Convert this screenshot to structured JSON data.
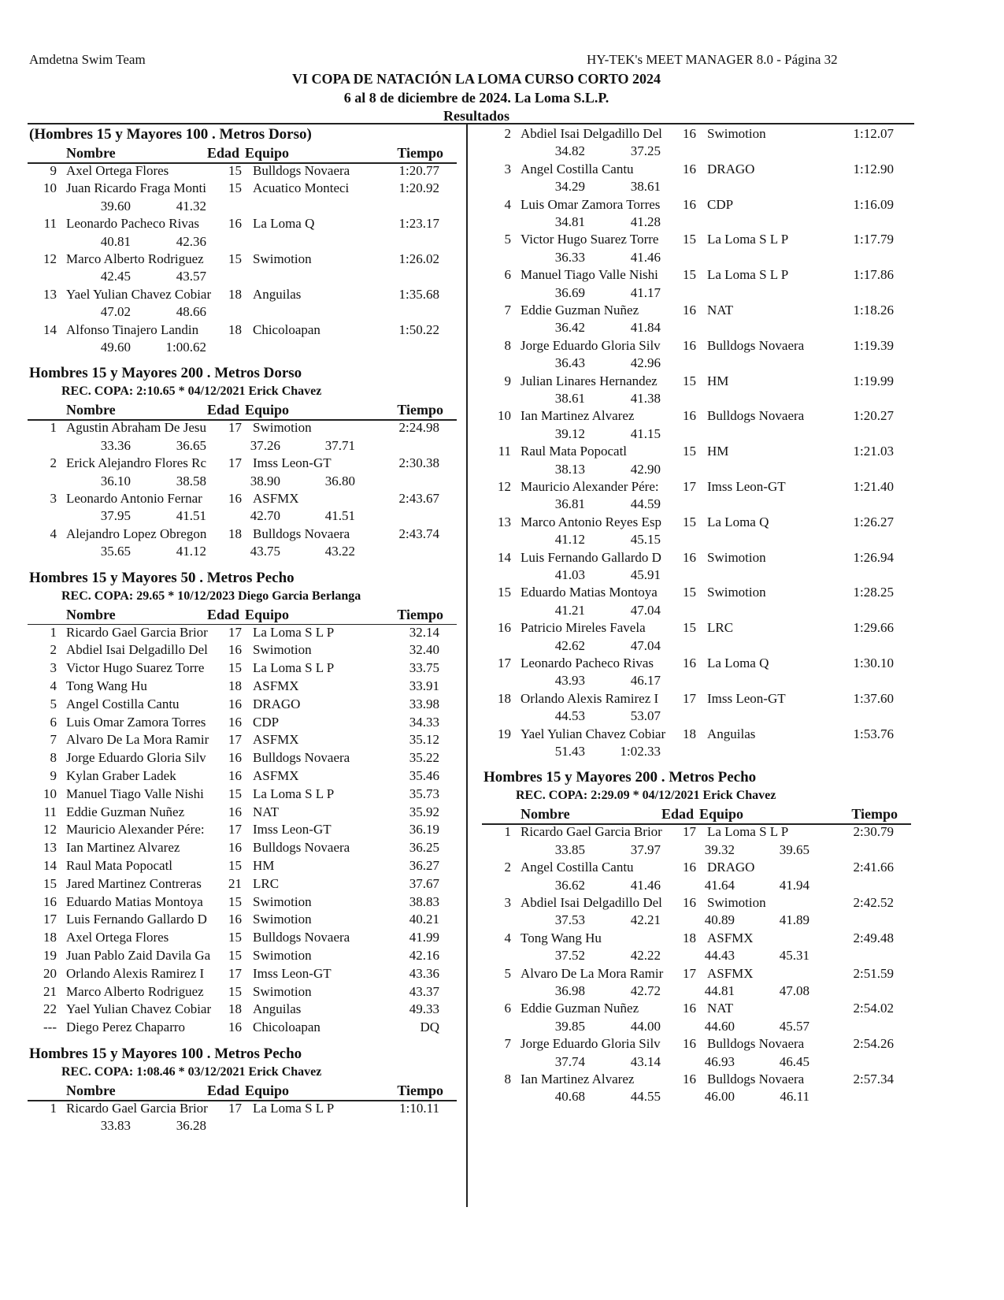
{
  "header": {
    "left": "Amdetna Swim Team",
    "right": "HY-TEK's MEET MANAGER 8.0 - Página 32",
    "title": "VI COPA DE NATACIÓN LA LOMA CURSO CORTO 2024",
    "subtitle": "6 al 8 de diciembre de 2024. La Loma S.L.P.",
    "section": "Resultados"
  },
  "columns": [
    "Nombre",
    "Edad",
    "Equipo",
    "Tiempo"
  ],
  "blocks": [
    {
      "title": "(Hombres 15 y Mayores 100 . Metros Dorso)",
      "rows": [
        [
          "9",
          "Axel Ortega Flores",
          15,
          "Bulldogs Novaera",
          "1:20.77",
          []
        ],
        [
          "10",
          "Juan Ricardo Fraga Monti",
          15,
          "Acuatico Monteci",
          "1:20.92",
          [
            "39.60",
            "41.32"
          ]
        ],
        [
          "11",
          "Leonardo Pacheco Rivas",
          16,
          "La Loma Q",
          "1:23.17",
          [
            "40.81",
            "42.36"
          ]
        ],
        [
          "12",
          "Marco Alberto Rodriguez",
          15,
          "Swimotion",
          "1:26.02",
          [
            "42.45",
            "43.57"
          ]
        ],
        [
          "13",
          "Yael Yulian Chavez Cobiar",
          18,
          "Anguilas",
          "1:35.68",
          [
            "47.02",
            "48.66"
          ]
        ],
        [
          "14",
          "Alfonso Tinajero Landin",
          18,
          "Chicoloapan",
          "1:50.22",
          [
            "49.60",
            "1:00.62"
          ]
        ]
      ]
    },
    {
      "title": "Hombres 15 y Mayores 200 . Metros Dorso",
      "record": "REC. COPA:  2:10.65  *  04/12/2021 Erick Chavez",
      "rows": [
        [
          "1",
          "Agustin Abraham De Jesu",
          17,
          "Swimotion",
          "2:24.98",
          [
            "33.36",
            "36.65",
            "37.26",
            "37.71"
          ]
        ],
        [
          "2",
          "Erick Alejandro Flores Rc",
          17,
          "Imss Leon-GT",
          "2:30.38",
          [
            "36.10",
            "38.58",
            "38.90",
            "36.80"
          ]
        ],
        [
          "3",
          "Leonardo Antonio Fernar",
          16,
          "ASFMX",
          "2:43.67",
          [
            "37.95",
            "41.51",
            "42.70",
            "41.51"
          ]
        ],
        [
          "4",
          "Alejandro Lopez Obregon",
          18,
          "Bulldogs Novaera",
          "2:43.74",
          [
            "35.65",
            "41.12",
            "43.75",
            "43.22"
          ]
        ]
      ]
    },
    {
      "title": "Hombres 15 y Mayores 50 . Metros Pecho",
      "record": "REC. COPA:     29.65  *  10/12/2023 Diego Garcia Berlanga",
      "rows": [
        [
          "1",
          "Ricardo Gael Garcia Brior",
          17,
          "La Loma S L P",
          "32.14",
          []
        ],
        [
          "2",
          "Abdiel Isai Delgadillo Del",
          16,
          "Swimotion",
          "32.40",
          []
        ],
        [
          "3",
          "Victor Hugo Suarez Torre",
          15,
          "La Loma S L P",
          "33.75",
          []
        ],
        [
          "4",
          "Tong Wang Hu",
          18,
          "ASFMX",
          "33.91",
          []
        ],
        [
          "5",
          "Angel Costilla Cantu",
          16,
          "DRAGO",
          "33.98",
          []
        ],
        [
          "6",
          "Luis Omar Zamora Torres",
          16,
          "CDP",
          "34.33",
          []
        ],
        [
          "7",
          "Alvaro De La Mora Ramir",
          17,
          "ASFMX",
          "35.12",
          []
        ],
        [
          "8",
          "Jorge Eduardo Gloria Silv",
          16,
          "Bulldogs Novaera",
          "35.22",
          []
        ],
        [
          "9",
          "Kylan Graber Ladek",
          16,
          "ASFMX",
          "35.46",
          []
        ],
        [
          "10",
          "Manuel Tiago Valle Nishi",
          15,
          "La Loma S L P",
          "35.73",
          []
        ],
        [
          "11",
          "Eddie Guzman Nuñez",
          16,
          "NAT",
          "35.92",
          []
        ],
        [
          "12",
          "Mauricio Alexander Pére:",
          17,
          "Imss Leon-GT",
          "36.19",
          []
        ],
        [
          "13",
          "Ian Martinez Alvarez",
          16,
          "Bulldogs Novaera",
          "36.25",
          []
        ],
        [
          "14",
          "Raul Mata Popocatl",
          15,
          "HM",
          "36.27",
          []
        ],
        [
          "15",
          "Jared Martinez Contreras",
          21,
          "LRC",
          "37.67",
          []
        ],
        [
          "16",
          "Eduardo Matias Montoya",
          15,
          "Swimotion",
          "38.83",
          []
        ],
        [
          "17",
          "Luis Fernando Gallardo D",
          16,
          "Swimotion",
          "40.21",
          []
        ],
        [
          "18",
          "Axel Ortega Flores",
          15,
          "Bulldogs Novaera",
          "41.99",
          []
        ],
        [
          "19",
          "Juan Pablo Zaid Davila Ga",
          15,
          "Swimotion",
          "42.16",
          []
        ],
        [
          "20",
          "Orlando Alexis Ramirez I",
          17,
          "Imss Leon-GT",
          "43.36",
          []
        ],
        [
          "21",
          "Marco Alberto Rodriguez",
          15,
          "Swimotion",
          "43.37",
          []
        ],
        [
          "22",
          "Yael Yulian Chavez Cobiar",
          18,
          "Anguilas",
          "49.33",
          []
        ],
        [
          "---",
          "Diego Perez Chaparro",
          16,
          "Chicoloapan",
          "DQ",
          []
        ]
      ]
    },
    {
      "title": "Hombres 15 y Mayores 100 . Metros Pecho",
      "record": "REC. COPA:  1:08.46  *  03/12/2021 Erick Chavez",
      "rows": [
        [
          "1",
          "Ricardo Gael Garcia Brior",
          17,
          "La Loma S L P",
          "1:10.11",
          [
            "33.83",
            "36.28"
          ]
        ]
      ]
    },
    {
      "rows": [
        [
          "2",
          "Abdiel Isai Delgadillo Del",
          16,
          "Swimotion",
          "1:12.07",
          [
            "34.82",
            "37.25"
          ]
        ],
        [
          "3",
          "Angel Costilla Cantu",
          16,
          "DRAGO",
          "1:12.90",
          [
            "34.29",
            "38.61"
          ]
        ],
        [
          "4",
          "Luis Omar Zamora Torres",
          16,
          "CDP",
          "1:16.09",
          [
            "34.81",
            "41.28"
          ]
        ],
        [
          "5",
          "Victor Hugo Suarez Torre",
          15,
          "La Loma S L P",
          "1:17.79",
          [
            "36.33",
            "41.46"
          ]
        ],
        [
          "6",
          "Manuel Tiago Valle Nishi",
          15,
          "La Loma S L P",
          "1:17.86",
          [
            "36.69",
            "41.17"
          ]
        ],
        [
          "7",
          "Eddie Guzman Nuñez",
          16,
          "NAT",
          "1:18.26",
          [
            "36.42",
            "41.84"
          ]
        ],
        [
          "8",
          "Jorge Eduardo Gloria Silv",
          16,
          "Bulldogs Novaera",
          "1:19.39",
          [
            "36.43",
            "42.96"
          ]
        ],
        [
          "9",
          "Julian Linares Hernandez",
          15,
          "HM",
          "1:19.99",
          [
            "38.61",
            "41.38"
          ]
        ],
        [
          "10",
          "Ian Martinez Alvarez",
          16,
          "Bulldogs Novaera",
          "1:20.27",
          [
            "39.12",
            "41.15"
          ]
        ],
        [
          "11",
          "Raul Mata Popocatl",
          15,
          "HM",
          "1:21.03",
          [
            "38.13",
            "42.90"
          ]
        ],
        [
          "12",
          "Mauricio Alexander Pére:",
          17,
          "Imss Leon-GT",
          "1:21.40",
          [
            "36.81",
            "44.59"
          ]
        ],
        [
          "13",
          "Marco Antonio Reyes Esp",
          15,
          "La Loma Q",
          "1:26.27",
          [
            "41.12",
            "45.15"
          ]
        ],
        [
          "14",
          "Luis Fernando Gallardo D",
          16,
          "Swimotion",
          "1:26.94",
          [
            "41.03",
            "45.91"
          ]
        ],
        [
          "15",
          "Eduardo Matias Montoya",
          15,
          "Swimotion",
          "1:28.25",
          [
            "41.21",
            "47.04"
          ]
        ],
        [
          "16",
          "Patricio Mireles Favela",
          15,
          "LRC",
          "1:29.66",
          [
            "42.62",
            "47.04"
          ]
        ],
        [
          "17",
          "Leonardo Pacheco Rivas",
          16,
          "La Loma Q",
          "1:30.10",
          [
            "43.93",
            "46.17"
          ]
        ],
        [
          "18",
          "Orlando Alexis Ramirez I",
          17,
          "Imss Leon-GT",
          "1:37.60",
          [
            "44.53",
            "53.07"
          ]
        ],
        [
          "19",
          "Yael Yulian Chavez Cobiar",
          18,
          "Anguilas",
          "1:53.76",
          [
            "51.43",
            "1:02.33"
          ]
        ]
      ]
    },
    {
      "title": "Hombres 15 y Mayores 200 . Metros Pecho",
      "record": "REC. COPA:  2:29.09  *  04/12/2021 Erick Chavez",
      "rows": [
        [
          "1",
          "Ricardo Gael Garcia Brior",
          17,
          "La Loma S L P",
          "2:30.79",
          [
            "33.85",
            "37.97",
            "39.32",
            "39.65"
          ]
        ],
        [
          "2",
          "Angel Costilla Cantu",
          16,
          "DRAGO",
          "2:41.66",
          [
            "36.62",
            "41.46",
            "41.64",
            "41.94"
          ]
        ],
        [
          "3",
          "Abdiel Isai Delgadillo Del",
          16,
          "Swimotion",
          "2:42.52",
          [
            "37.53",
            "42.21",
            "40.89",
            "41.89"
          ]
        ],
        [
          "4",
          "Tong Wang Hu",
          18,
          "ASFMX",
          "2:49.48",
          [
            "37.52",
            "42.22",
            "44.43",
            "45.31"
          ]
        ],
        [
          "5",
          "Alvaro De La Mora Ramir",
          17,
          "ASFMX",
          "2:51.59",
          [
            "36.98",
            "42.72",
            "44.81",
            "47.08"
          ]
        ],
        [
          "6",
          "Eddie Guzman Nuñez",
          16,
          "NAT",
          "2:54.02",
          [
            "39.85",
            "44.00",
            "44.60",
            "45.57"
          ]
        ],
        [
          "7",
          "Jorge Eduardo Gloria Silv",
          16,
          "Bulldogs Novaera",
          "2:54.26",
          [
            "37.74",
            "43.14",
            "46.93",
            "46.45"
          ]
        ],
        [
          "8",
          "Ian Martinez Alvarez",
          16,
          "Bulldogs Novaera",
          "2:57.34",
          [
            "40.68",
            "44.55",
            "46.00",
            "46.11"
          ]
        ]
      ]
    }
  ]
}
